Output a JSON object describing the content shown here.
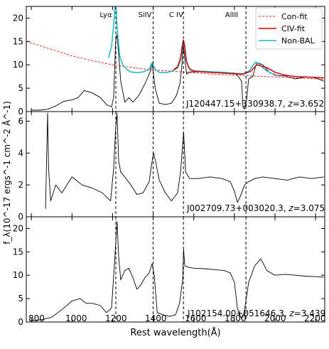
{
  "chart_data": {
    "type": "line",
    "xlabel": "Rest wavelength(Å)",
    "ylabel": "f_λ(10^-17 ergs^-1 cm^-2 Å^-1)",
    "xlim": [
      775,
      2245
    ],
    "xticks": [
      800,
      1000,
      1200,
      1400,
      1600,
      1800,
      2000,
      2200
    ],
    "lines": [
      {
        "label": "Lyα",
        "x": 1216
      },
      {
        "label": "SiIV",
        "x": 1400
      },
      {
        "label": "C IV",
        "x": 1549
      },
      {
        "label": "AlIII",
        "x": 1857
      }
    ],
    "legend": {
      "placement": "top-right",
      "entries": [
        {
          "label": "Con-fit",
          "color": "#ff2020",
          "style": "dashed"
        },
        {
          "label": "CIV-fit",
          "color": "#d00000",
          "style": "solid"
        },
        {
          "label": "Non-BAL",
          "color": "#17bcc8",
          "style": "solid"
        }
      ]
    },
    "panels": [
      {
        "name": "J120447.15+330938.7",
        "z": "3.652",
        "ylim": [
          0,
          22.5
        ],
        "yticks": [
          0,
          5,
          10,
          15,
          20
        ],
        "series": {
          "spectrum": {
            "color": "#000000",
            "x": [
              800,
              840,
              880,
              920,
              960,
              1000,
              1030,
              1060,
              1100,
              1140,
              1170,
              1195,
              1205,
              1215,
              1222,
              1228,
              1240,
              1260,
              1280,
              1300,
              1330,
              1360,
              1385,
              1395,
              1410,
              1430,
              1460,
              1490,
              1515,
              1532,
              1542,
              1548,
              1555,
              1565,
              1580,
              1600,
              1650,
              1700,
              1750,
              1780,
              1800,
              1820,
              1835,
              1842,
              1850,
              1860,
              1870,
              1890,
              1910,
              1940,
              1970,
              2000,
              2050,
              2100,
              2150,
              2200,
              2240
            ],
            "y": [
              0.3,
              0.3,
              0.5,
              1.2,
              2.2,
              2.5,
              3.0,
              4.5,
              4.0,
              3.0,
              1.5,
              1.0,
              3.0,
              15.0,
              16.5,
              13.5,
              6.5,
              2.0,
              3.0,
              2.0,
              3.5,
              6.0,
              8.5,
              10.5,
              5.0,
              1.8,
              1.5,
              1.8,
              3.5,
              6.0,
              10.0,
              14.5,
              11.5,
              8.0,
              8.5,
              8.5,
              8.5,
              8.4,
              8.3,
              8.3,
              8.3,
              7.5,
              6.5,
              1.0,
              0.5,
              2.5,
              7.0,
              7.5,
              10.5,
              10.0,
              8.5,
              7.8,
              7.6,
              7.0,
              7.4,
              7.2,
              6.5
            ]
          },
          "con_fit": {
            "color": "#ff2020",
            "x": [
              775,
              900,
              1000,
              1100,
              1200,
              1300,
              1400,
              1500,
              1600,
              1700,
              1800,
              1900,
              2000,
              2100,
              2200,
              2245
            ],
            "y": [
              15.0,
              13.3,
              11.9,
              10.9,
              10.0,
              9.4,
              8.9,
              8.6,
              8.3,
              8.0,
              7.8,
              7.6,
              7.4,
              7.2,
              7.0,
              6.9
            ]
          },
          "civ_fit": {
            "color": "#d00000",
            "x": [
              1500,
              1520,
              1535,
              1543,
              1549,
              1555,
              1563,
              1575,
              1590,
              1610,
              1640,
              1680,
              1720,
              1760,
              1800,
              1840,
              1880,
              1910,
              1960,
              2000,
              2050,
              2100,
              2150,
              2200,
              2240
            ],
            "y": [
              8.9,
              9.6,
              11.5,
              14.0,
              15.3,
              14.0,
              11.0,
              9.4,
              8.8,
              8.6,
              8.5,
              8.4,
              8.3,
              8.2,
              8.1,
              8.0,
              8.6,
              10.0,
              9.4,
              8.4,
              7.8,
              7.5,
              7.4,
              7.3,
              7.2
            ]
          },
          "non_bal": {
            "color": "#17bcc8",
            "x": [
              1180,
              1195,
              1205,
              1212,
              1217,
              1222,
              1235,
              1250,
              1270,
              1290,
              1320,
              1350,
              1380,
              1395,
              1410,
              1430,
              1460,
              1490,
              1520,
              1535,
              1545,
              1550,
              1556,
              1565,
              1580,
              1600,
              1650,
              1700,
              1750,
              1800,
              1840,
              1870,
              1890,
              1905,
              1920,
              1950,
              1980,
              2000
            ],
            "y": [
              11.5,
              14.0,
              18.5,
              22.5,
              22.0,
              18.0,
              12.0,
              10.0,
              9.0,
              8.5,
              8.3,
              8.5,
              9.0,
              10.5,
              9.0,
              8.4,
              8.3,
              8.6,
              9.3,
              11.0,
              14.0,
              15.2,
              14.0,
              10.5,
              9.1,
              8.7,
              8.6,
              8.5,
              8.4,
              8.2,
              8.1,
              8.6,
              9.8,
              10.6,
              10.2,
              9.0,
              8.2,
              8.0
            ]
          }
        }
      },
      {
        "name": "J002709.73+003020.3",
        "z": "3.075",
        "ylim": [
          0,
          6.6
        ],
        "yticks": [
          0,
          2,
          4,
          6
        ],
        "series": {
          "spectrum": {
            "color": "#000000",
            "x": [
              870,
              880,
              885,
              895,
              920,
              950,
              1000,
              1050,
              1100,
              1150,
              1190,
              1205,
              1215,
              1222,
              1230,
              1240,
              1260,
              1290,
              1320,
              1350,
              1380,
              1395,
              1402,
              1410,
              1430,
              1460,
              1490,
              1520,
              1535,
              1545,
              1550,
              1560,
              1580,
              1620,
              1680,
              1740,
              1780,
              1800,
              1815,
              1830,
              1850,
              1870,
              1900,
              1940,
              2000,
              2060,
              2120,
              2180,
              2240
            ],
            "y": [
              0.5,
              6.5,
              3.0,
              1.0,
              2.0,
              1.5,
              2.5,
              2.0,
              1.8,
              1.5,
              1.0,
              3.0,
              5.5,
              6.5,
              3.5,
              2.8,
              2.5,
              2.0,
              1.4,
              1.5,
              2.2,
              3.5,
              4.0,
              3.6,
              2.3,
              1.5,
              1.0,
              1.5,
              2.8,
              4.5,
              5.3,
              2.8,
              2.4,
              2.4,
              2.5,
              2.4,
              2.2,
              1.6,
              0.9,
              1.3,
              2.0,
              2.2,
              2.4,
              2.5,
              2.4,
              2.3,
              2.5,
              2.4,
              2.5
            ]
          }
        }
      },
      {
        "name": "J102154.00+051646.3",
        "z": "3.439",
        "ylim": [
          0,
          22.5
        ],
        "yticks": [
          0,
          5,
          10,
          15,
          20
        ],
        "series": {
          "spectrum": {
            "color": "#000000",
            "x": [
              800,
              850,
              900,
              930,
              960,
              1000,
              1040,
              1070,
              1100,
              1140,
              1170,
              1195,
              1210,
              1222,
              1230,
              1240,
              1260,
              1280,
              1300,
              1320,
              1340,
              1360,
              1380,
              1395,
              1405,
              1420,
              1450,
              1480,
              1510,
              1530,
              1545,
              1550,
              1556,
              1565,
              1600,
              1650,
              1700,
              1750,
              1780,
              1800,
              1815,
              1825,
              1835,
              1845,
              1855,
              1870,
              1900,
              1930,
              1960,
              2000,
              2050,
              2100,
              2150,
              2200,
              2240
            ],
            "y": [
              0.2,
              0.5,
              1.0,
              2.0,
              3.0,
              4.5,
              5.0,
              4.0,
              4.0,
              3.5,
              2.0,
              3.0,
              13.0,
              21.5,
              14.0,
              9.0,
              11.0,
              11.5,
              9.5,
              7.0,
              8.0,
              9.5,
              10.5,
              12.5,
              10.0,
              2.0,
              1.5,
              1.2,
              1.5,
              4.0,
              9.0,
              15.5,
              12.0,
              11.8,
              11.5,
              11.4,
              11.2,
              11.0,
              10.5,
              8.5,
              3.0,
              1.5,
              0.8,
              1.5,
              4.0,
              8.5,
              12.0,
              13.5,
              11.0,
              10.0,
              10.2,
              10.0,
              9.8,
              9.7,
              9.6
            ]
          }
        }
      }
    ]
  }
}
